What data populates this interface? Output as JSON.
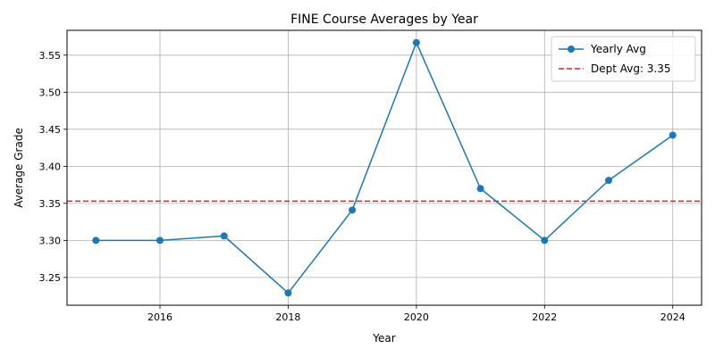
{
  "chart_data": {
    "type": "line",
    "title": "FINE Course Averages by Year",
    "xlabel": "Year",
    "ylabel": "Average Grade",
    "x": [
      2015,
      2016,
      2017,
      2018,
      2019,
      2020,
      2021,
      2022,
      2023,
      2024
    ],
    "series": [
      {
        "name": "Yearly Avg",
        "values": [
          3.3,
          3.3,
          3.306,
          3.229,
          3.341,
          3.567,
          3.37,
          3.3,
          3.381,
          3.442
        ],
        "color": "#1f77b4",
        "marker": "circle",
        "line_style": "solid"
      }
    ],
    "reference_lines": [
      {
        "name": "Dept Avg: 3.35",
        "value": 3.353,
        "color": "#d62728",
        "line_style": "dashed"
      }
    ],
    "xlim": [
      2014.55,
      2024.45
    ],
    "ylim": [
      3.2125,
      3.5835
    ],
    "x_ticks": [
      2016,
      2018,
      2020,
      2022,
      2024
    ],
    "y_ticks": [
      3.25,
      3.3,
      3.35,
      3.4,
      3.45,
      3.5,
      3.55
    ],
    "y_tick_labels": [
      "3.25",
      "3.30",
      "3.35",
      "3.40",
      "3.45",
      "3.50",
      "3.55"
    ],
    "grid": true,
    "legend_position": "top-right"
  }
}
